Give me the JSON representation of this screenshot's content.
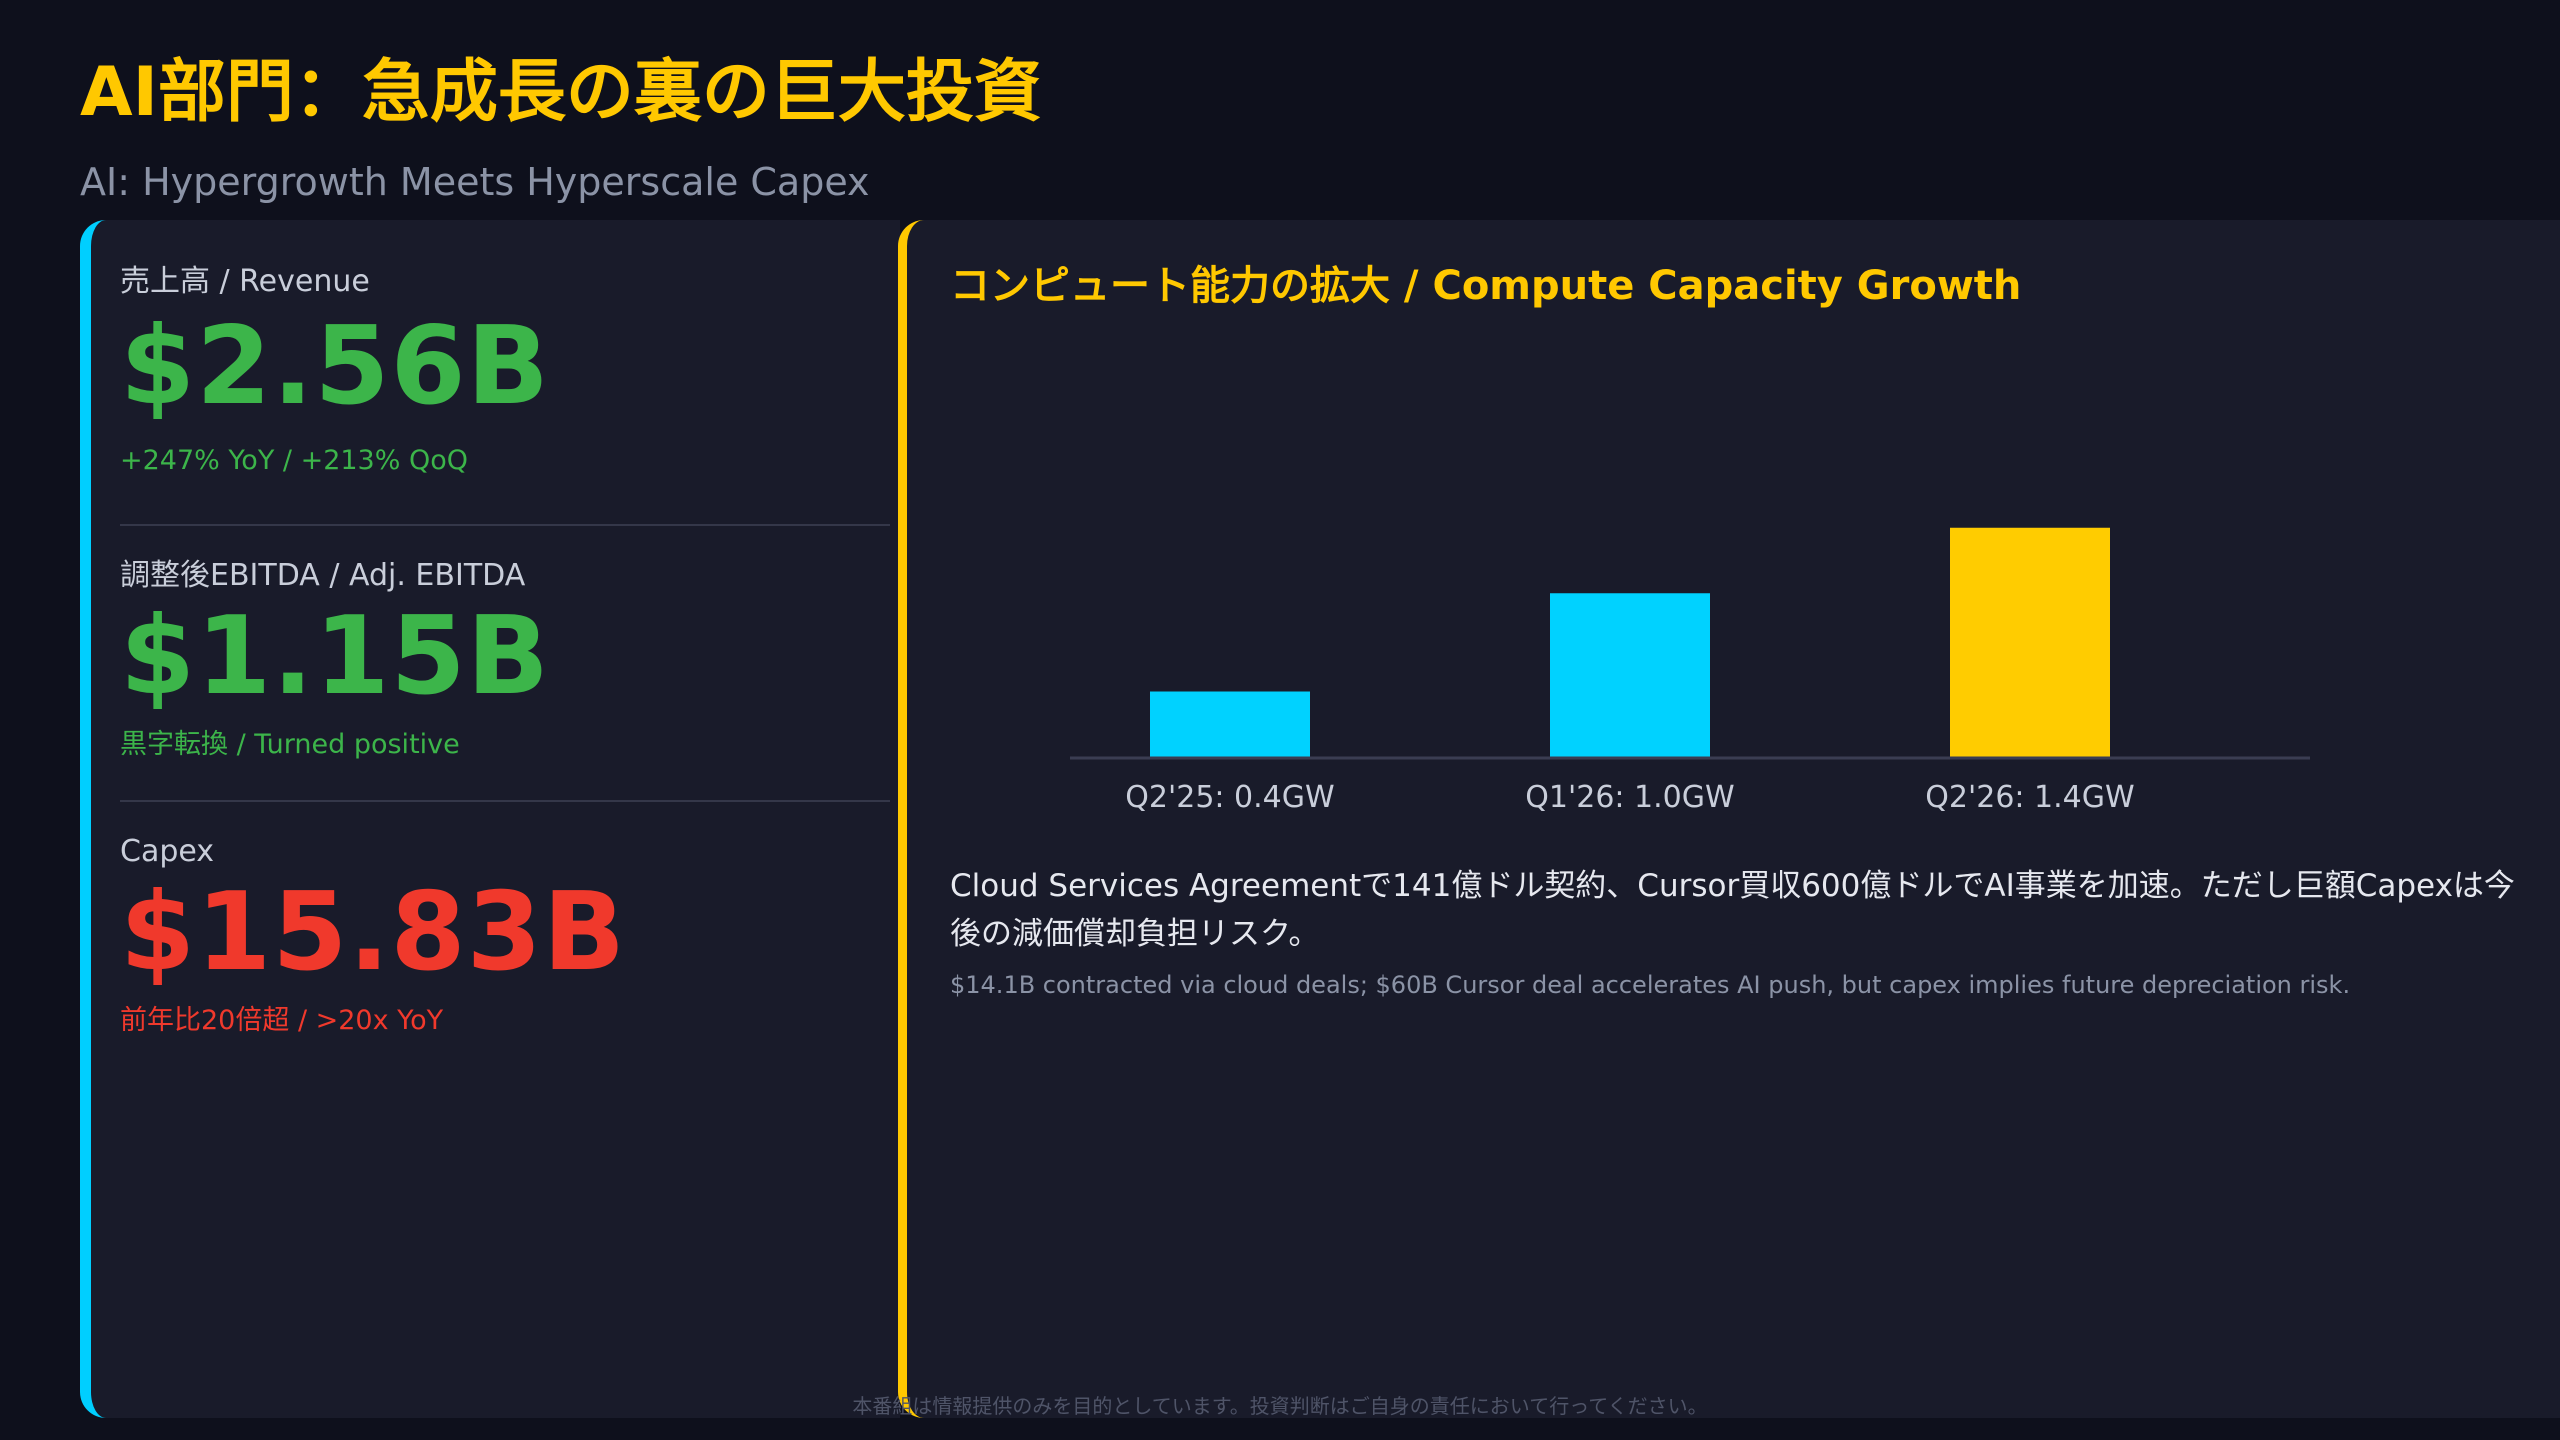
{
  "header": {
    "title": "AI部門：急成長の裏の巨大投資",
    "subtitle": "AI: Hypergrowth Meets Hyperscale Capex"
  },
  "metrics": [
    {
      "label": "売上高 / Revenue",
      "value": "$2.56B",
      "note": "+247% YoY / +213% QoQ",
      "color": "#3cb54a"
    },
    {
      "label": "調整後EBITDA / Adj. EBITDA",
      "value": "$1.15B",
      "note": "黒字転換 / Turned positive",
      "color": "#3cb54a"
    },
    {
      "label": "Capex",
      "value": "$15.83B",
      "note": "前年比20倍超 / >20x YoY",
      "color": "#f0392c"
    }
  ],
  "chart_title": "コンピュート能力の拡大 / Compute Capacity Growth",
  "chart_data": {
    "type": "bar",
    "categories": [
      "Q2'25",
      "Q1'26",
      "Q2'26"
    ],
    "values": [
      0.4,
      1.0,
      1.4
    ],
    "unit": "GW",
    "tick_labels": [
      "Q2'25: 0.4GW",
      "Q1'26: 1.0GW",
      "Q2'26: 1.4GW"
    ],
    "colors": [
      "#00d2ff",
      "#00d2ff",
      "#ffcc00"
    ],
    "title": "",
    "xlabel": "",
    "ylabel": "",
    "ylim": [
      0,
      1.6
    ],
    "grid": false
  },
  "commentary": {
    "jp": "Cloud Services Agreementで141億ドル契約、Cursor買収600億ドルでAI事業を加速。ただし巨額Capexは今後の減価償却負担リスク。",
    "en": "$14.1B contracted via cloud deals; $60B Cursor deal accelerates AI push, but capex implies future depreciation risk."
  },
  "disclaimer": "本番組は情報提供のみを目的としています。投資判断はご自身の責任において行ってください。"
}
